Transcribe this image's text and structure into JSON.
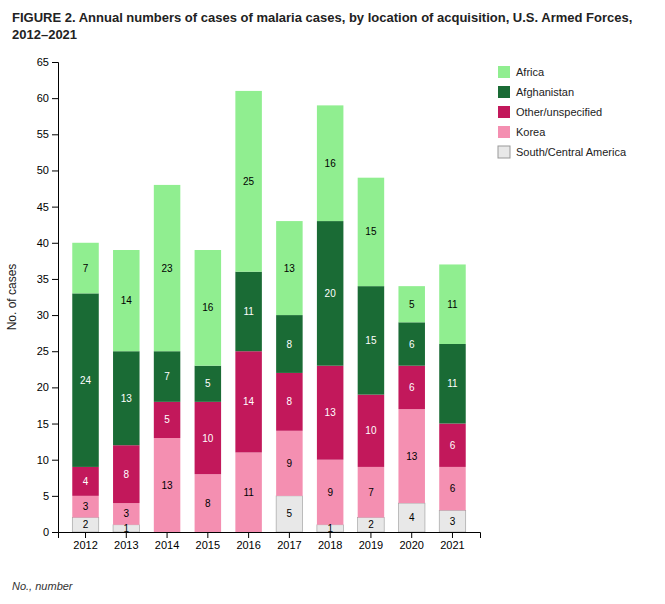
{
  "chart_data": {
    "type": "bar",
    "stacked": true,
    "title": "FIGURE 2. Annual numbers of cases of malaria cases, by location of acquisition, U.S. Armed Forces, 2012–2021",
    "ylabel": "No. of cases",
    "categories": [
      "2012",
      "2013",
      "2014",
      "2015",
      "2016",
      "2017",
      "2018",
      "2019",
      "2020",
      "2021"
    ],
    "series": [
      {
        "name": "South/Central America",
        "color": "#e8e8e8",
        "values": [
          2,
          1,
          0,
          0,
          0,
          5,
          1,
          2,
          4,
          3
        ]
      },
      {
        "name": "Korea",
        "color": "#f48fb1",
        "values": [
          3,
          3,
          13,
          8,
          11,
          9,
          9,
          7,
          13,
          6
        ]
      },
      {
        "name": "Other/unspecified",
        "color": "#c2185b",
        "values": [
          4,
          8,
          5,
          10,
          14,
          8,
          13,
          10,
          6,
          6
        ]
      },
      {
        "name": "Afghanistan",
        "color": "#1a6b35",
        "values": [
          24,
          13,
          7,
          5,
          11,
          8,
          20,
          15,
          6,
          11
        ]
      },
      {
        "name": "Africa",
        "color": "#90ee90",
        "values": [
          7,
          14,
          23,
          16,
          25,
          13,
          16,
          15,
          5,
          11
        ]
      }
    ],
    "ylim": [
      0,
      65
    ],
    "yticks": [
      0,
      5,
      10,
      15,
      20,
      25,
      30,
      35,
      40,
      45,
      50,
      55,
      60,
      65
    ],
    "grid": false,
    "legend": "right",
    "data_labels": true,
    "annotations": [
      "No., number"
    ]
  }
}
